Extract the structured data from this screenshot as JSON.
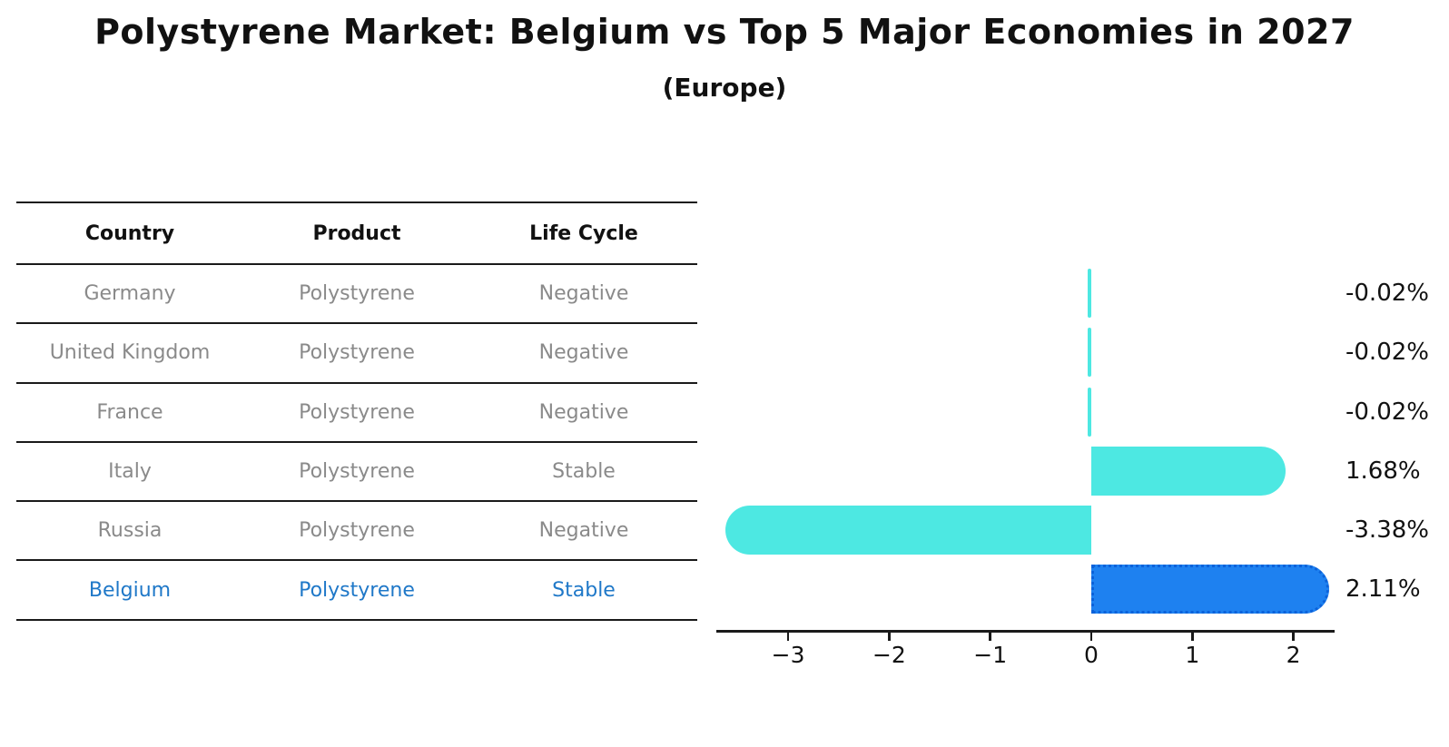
{
  "header": {
    "title": "Polystyrene Market: Belgium vs Top 5 Major Economies in 2027",
    "subtitle": "(Europe)"
  },
  "table": {
    "columns": [
      "Country",
      "Product",
      "Life Cycle"
    ],
    "rows": [
      {
        "country": "Germany",
        "product": "Polystyrene",
        "life_cycle": "Negative",
        "highlight": false
      },
      {
        "country": "United Kingdom",
        "product": "Polystyrene",
        "life_cycle": "Negative",
        "highlight": false
      },
      {
        "country": "France",
        "product": "Polystyrene",
        "life_cycle": "Negative",
        "highlight": false
      },
      {
        "country": "Italy",
        "product": "Polystyrene",
        "life_cycle": "Stable",
        "highlight": false
      },
      {
        "country": "Russia",
        "product": "Polystyrene",
        "life_cycle": "Negative",
        "highlight": false
      },
      {
        "country": "Belgium",
        "product": "Polystyrene",
        "life_cycle": "Stable",
        "highlight": true
      }
    ]
  },
  "chart_data": {
    "type": "bar",
    "orientation": "horizontal",
    "title": "Polystyrene Market: Belgium vs Top 5 Major Economies in 2027",
    "subtitle": "(Europe)",
    "categories": [
      "Germany",
      "United Kingdom",
      "France",
      "Italy",
      "Russia",
      "Belgium"
    ],
    "values": [
      -0.02,
      -0.02,
      -0.02,
      1.68,
      -3.38,
      2.11
    ],
    "value_labels": [
      "-0.02%",
      "-0.02%",
      "-0.02%",
      "1.68%",
      "-3.38%",
      "2.11%"
    ],
    "xlabel": "",
    "ylabel": "",
    "xlim": [
      -3.72,
      2.41
    ],
    "x_ticks": [
      -3,
      -2,
      -1,
      0,
      1,
      2
    ],
    "x_tick_labels": [
      "−3",
      "−2",
      "−1",
      "0",
      "1",
      "2"
    ],
    "grid": false,
    "legend": false,
    "highlight_index": 5,
    "colors": {
      "bar_default": "#4DE8E2",
      "bar_highlight": "#1E81F0",
      "bar_highlight_edge": "#0B62DA",
      "highlight_text": "#1F78C8",
      "table_text": "#8A8A8A",
      "header_text": "#111111",
      "axis": "#1A1A1A"
    }
  }
}
